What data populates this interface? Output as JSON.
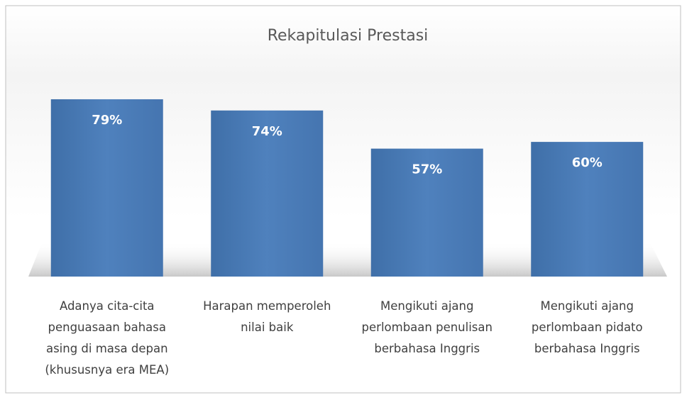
{
  "chart_data": {
    "type": "bar",
    "title": "Rekapitulasi Prestasi",
    "categories": [
      "Adanya cita-cita\npenguasaan bahasa\nasing  di masa depan\n(khususnya era MEA)",
      "Harapan memperoleh\nnilai baik",
      "Mengikuti ajang\nperlombaan  penulisan\nberbahasa Inggris",
      "Mengikuti ajang\nperlombaan  pidato\nberbahasa Inggris"
    ],
    "values": [
      79,
      74,
      57,
      60
    ],
    "value_labels": [
      "79%",
      "74%",
      "57%",
      "60%"
    ],
    "color": "#4f81bd"
  }
}
